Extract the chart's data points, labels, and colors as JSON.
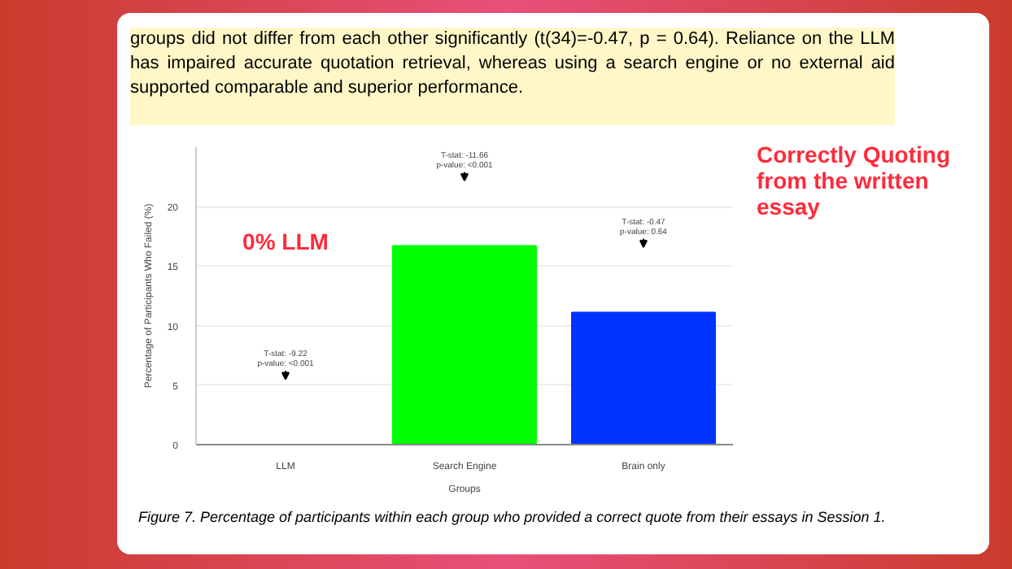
{
  "chart_data": {
    "type": "bar",
    "title": "Correctly Quoting from the written essay",
    "subtitle": "0% LLM",
    "xlabel": "Groups",
    "ylabel": "Percentage of Participants Who Failed (%)",
    "categories": [
      "LLM",
      "Search Engine",
      "Brain only"
    ],
    "values": [
      0,
      16.7,
      11.1
    ],
    "colors": [
      "#ff0000",
      "#00ff00",
      "#0033ff"
    ],
    "ylim": [
      0,
      25
    ],
    "yticks": [
      0,
      5,
      10,
      15,
      20
    ],
    "grid": "y",
    "annotations": [
      "groups did not differ from each other significantly (t(34)=-0.47, p = 0.64). Reliance on the LLM has impaired accurate quotation retrieval, whereas using a search engine or no external aid supported comparable and superior performance.",
      "T-stat: -9.22\np-value: <0.001",
      "T-stat: -11.66\np-value: <0.001",
      "T-stat: -0.47\np-value: 0.64",
      "Figure 7. Percentage of participants within each group who provided a correct quote from their essays in Session 1."
    ]
  }
}
